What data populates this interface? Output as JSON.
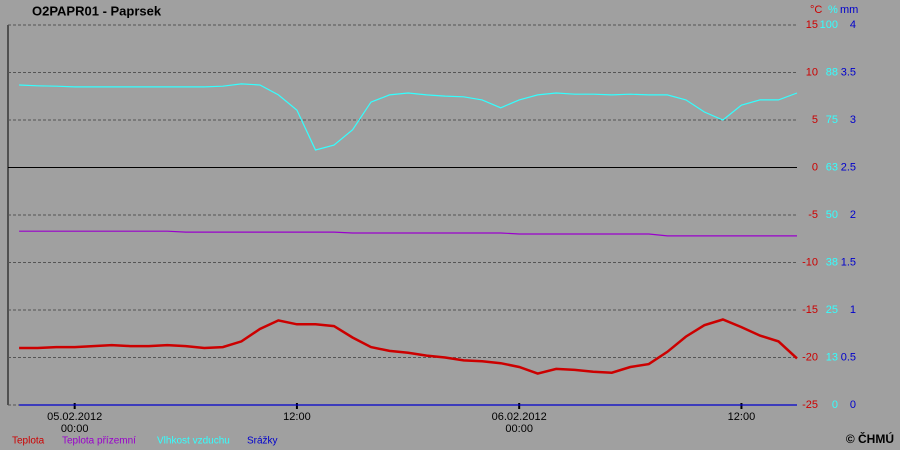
{
  "chart_data": {
    "type": "line",
    "title": "O2PAPR01 - Paprsek",
    "copyright": "© ČHMÚ",
    "x": [
      -3,
      -2,
      -1,
      0,
      1,
      2,
      3,
      4,
      5,
      6,
      7,
      8,
      9,
      10,
      11,
      12,
      13,
      14,
      15,
      16,
      17,
      18,
      19,
      20,
      21,
      22,
      23,
      24,
      25,
      26,
      27,
      28,
      29,
      30,
      31,
      32,
      33,
      34,
      35,
      36,
      37,
      38,
      39
    ],
    "xlim": [
      -3.6,
      39
    ],
    "xticks": [
      {
        "value": 0,
        "label": "00:00",
        "date": "05.02.2012"
      },
      {
        "value": 12,
        "label": "12:00"
      },
      {
        "value": 24,
        "label": "00:00",
        "date": "06.02.2012"
      },
      {
        "value": 36,
        "label": "12:00"
      }
    ],
    "ylabel": "°C",
    "ylim": [
      -25,
      15
    ],
    "yticks": [
      15,
      10,
      5,
      0,
      -5,
      -10,
      -15,
      -20,
      -25
    ],
    "y2label": "%",
    "y2lim": [
      0,
      100
    ],
    "y2ticks": [
      100,
      {
        "value": 87.5,
        "label": "88"
      },
      75,
      {
        "value": 62.5,
        "label": "63"
      },
      50,
      {
        "value": 37.5,
        "label": "38"
      },
      25,
      {
        "value": 12.5,
        "label": "13"
      },
      0
    ],
    "y3label": "mm",
    "y3lim": [
      0,
      4
    ],
    "y3ticks": [
      4,
      3.5,
      3,
      2.5,
      2,
      1.5,
      1,
      0.5,
      0
    ],
    "grid": true,
    "series": [
      {
        "name": "Teplota",
        "color": "#cc0000",
        "axis": "y",
        "values": [
          -19.0,
          -19.0,
          -18.9,
          -18.9,
          -18.8,
          -18.7,
          -18.8,
          -18.8,
          -18.7,
          -18.8,
          -19.0,
          -18.9,
          -18.3,
          -17.0,
          -16.1,
          -16.5,
          -16.5,
          -16.7,
          -17.9,
          -18.9,
          -19.3,
          -19.5,
          -19.8,
          -20.0,
          -20.3,
          -20.4,
          -20.6,
          -21.0,
          -21.7,
          -21.2,
          -21.3,
          -21.5,
          -21.6,
          -21.0,
          -20.7,
          -19.4,
          -17.8,
          -16.6,
          -16.0,
          -16.8,
          -17.7,
          -18.3,
          -20.1
        ]
      },
      {
        "name": "Teplota přízemní",
        "color": "#9900cc",
        "axis": "y",
        "values": [
          -6.7,
          -6.7,
          -6.7,
          -6.7,
          -6.7,
          -6.7,
          -6.7,
          -6.7,
          -6.7,
          -6.8,
          -6.8,
          -6.8,
          -6.8,
          -6.8,
          -6.8,
          -6.8,
          -6.8,
          -6.8,
          -6.9,
          -6.9,
          -6.9,
          -6.9,
          -6.9,
          -6.9,
          -6.9,
          -6.9,
          -6.9,
          -7.0,
          -7.0,
          -7.0,
          -7.0,
          -7.0,
          -7.0,
          -7.0,
          -7.0,
          -7.2,
          -7.2,
          -7.2,
          -7.2,
          -7.2,
          -7.2,
          -7.2,
          -7.2
        ]
      },
      {
        "name": "Vlhkost vzduchu",
        "color": "#33ffff",
        "axis": "y2",
        "values": [
          84.2,
          84.0,
          83.9,
          83.7,
          83.7,
          83.7,
          83.7,
          83.7,
          83.7,
          83.7,
          83.7,
          83.9,
          84.5,
          84.2,
          81.6,
          77.6,
          67.1,
          68.4,
          72.4,
          79.7,
          81.6,
          82.1,
          81.6,
          81.3,
          81.1,
          80.3,
          78.2,
          80.3,
          81.6,
          82.1,
          81.8,
          81.8,
          81.6,
          81.8,
          81.6,
          81.6,
          80.3,
          77.1,
          75.0,
          78.9,
          80.3,
          80.3,
          82.1
        ]
      },
      {
        "name": "Srážky",
        "color": "#0000cc",
        "axis": "y3",
        "values": [
          0,
          0,
          0,
          0,
          0,
          0,
          0,
          0,
          0,
          0,
          0,
          0,
          0,
          0,
          0,
          0,
          0,
          0,
          0,
          0,
          0,
          0,
          0,
          0,
          0,
          0,
          0,
          0,
          0,
          0,
          0,
          0,
          0,
          0,
          0,
          0,
          0,
          0,
          0,
          0,
          0,
          0,
          0
        ]
      }
    ]
  }
}
